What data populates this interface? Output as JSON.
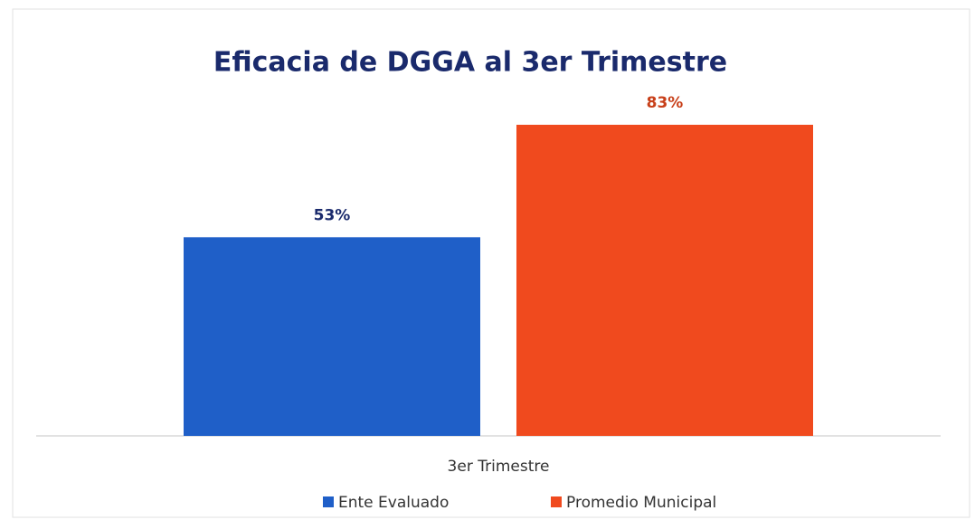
{
  "chart_data": {
    "type": "bar",
    "title": "Eficacia de DGGA al 3er Trimestre",
    "categories": [
      "3er Trimestre"
    ],
    "series": [
      {
        "name": "Ente Evaluado",
        "color": "#1f5fc8",
        "label_color": "#1a2a6c",
        "values": [
          53
        ],
        "value_labels": [
          "53%"
        ]
      },
      {
        "name": "Promedio Municipal",
        "color": "#f04a1e",
        "label_color": "#c8401a",
        "values": [
          83
        ],
        "value_labels": [
          "83%"
        ]
      }
    ],
    "grid": false,
    "legend": "bottom"
  }
}
